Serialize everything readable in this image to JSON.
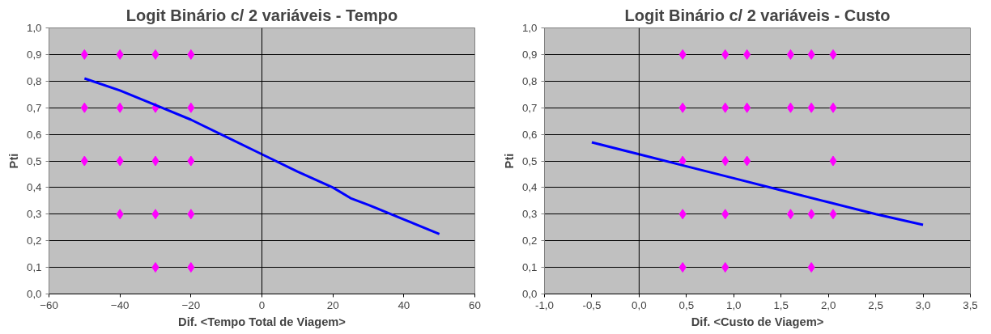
{
  "chart_data": [
    {
      "type": "scatter",
      "title": "Logit Binário c/ 2 variáveis - Tempo",
      "xlabel": "Dif. <Tempo Total de Viagem>",
      "ylabel": "Pti",
      "ref_lines": [
        {
          "axis": "x",
          "value": 0,
          "color": "#000000"
        }
      ],
      "grid": "y",
      "xlim": [
        -60,
        60
      ],
      "xticks": [
        -60,
        -40,
        -20,
        0,
        20,
        40,
        60
      ],
      "ylim": [
        0,
        1
      ],
      "yticks": [
        {
          "value": 0,
          "label": "0,0"
        },
        {
          "value": 0.1,
          "label": "0,1"
        },
        {
          "value": 0.2,
          "label": "0,2"
        },
        {
          "value": 0.3,
          "label": "0,3"
        },
        {
          "value": 0.4,
          "label": "0,4"
        },
        {
          "value": 0.5,
          "label": "0,5"
        },
        {
          "value": 0.6,
          "label": "0,6"
        },
        {
          "value": 0.7,
          "label": "0,7"
        },
        {
          "value": 0.8,
          "label": "0,8"
        },
        {
          "value": 0.9,
          "label": "0,9"
        },
        {
          "value": 1,
          "label": "1,0"
        }
      ],
      "series": [
        {
          "color": "#ff00ff",
          "marker": "diamond",
          "x": [
            -50,
            -50,
            -50,
            -40,
            -40,
            -40,
            -40,
            -30,
            -30,
            -30,
            -30,
            -30,
            -20,
            -20,
            -20,
            -20,
            -20
          ],
          "values": [
            0.9,
            0.7,
            0.5,
            0.9,
            0.7,
            0.5,
            0.3,
            0.9,
            0.7,
            0.5,
            0.3,
            0.1,
            0.9,
            0.7,
            0.5,
            0.3,
            0.1
          ]
        },
        {
          "type": "line",
          "color": "#0000ff",
          "x": [
            -50,
            -40,
            -30,
            -20,
            -10,
            0,
            10,
            20,
            25,
            30,
            40,
            50
          ],
          "values": [
            0.81,
            0.765,
            0.71,
            0.655,
            0.59,
            0.525,
            0.46,
            0.4,
            0.36,
            0.335,
            0.28,
            0.225
          ]
        }
      ]
    },
    {
      "type": "scatter",
      "title": "Logit Binário c/ 2 variáveis - Custo",
      "xlabel": "Dif. <Custo de Viagem>",
      "ylabel": "Pti",
      "ref_lines": [
        {
          "axis": "x",
          "value": 0,
          "color": "#000000"
        }
      ],
      "grid": "y",
      "xlim": [
        -1,
        3.5
      ],
      "xticks": [
        {
          "value": -1,
          "label": "-1,0"
        },
        {
          "value": -0.5,
          "label": "-0,5"
        },
        {
          "value": 0,
          "label": "0,0"
        },
        {
          "value": 0.5,
          "label": "0,5"
        },
        {
          "value": 1,
          "label": "1,0"
        },
        {
          "value": 1.5,
          "label": "1,5"
        },
        {
          "value": 2,
          "label": "2,0"
        },
        {
          "value": 2.5,
          "label": "2,5"
        },
        {
          "value": 3,
          "label": "3,0"
        },
        {
          "value": 3.5,
          "label": "3,5"
        }
      ],
      "ylim": [
        0,
        1
      ],
      "yticks": [
        {
          "value": 0,
          "label": "0,0"
        },
        {
          "value": 0.1,
          "label": "0,1"
        },
        {
          "value": 0.2,
          "label": "0,2"
        },
        {
          "value": 0.3,
          "label": "0,3"
        },
        {
          "value": 0.4,
          "label": "0,4"
        },
        {
          "value": 0.5,
          "label": "0,5"
        },
        {
          "value": 0.6,
          "label": "0,6"
        },
        {
          "value": 0.7,
          "label": "0,7"
        },
        {
          "value": 0.8,
          "label": "0,8"
        },
        {
          "value": 0.9,
          "label": "0,9"
        },
        {
          "value": 1,
          "label": "1,0"
        }
      ],
      "series": [
        {
          "color": "#ff00ff",
          "marker": "diamond",
          "x": [
            0.46,
            0.46,
            0.46,
            0.46,
            0.46,
            0.91,
            0.91,
            0.91,
            0.91,
            0.91,
            1.14,
            1.14,
            1.14,
            1.6,
            1.6,
            1.6,
            1.82,
            1.82,
            1.82,
            1.82,
            2.05,
            2.05,
            2.05,
            2.05
          ],
          "values": [
            0.9,
            0.7,
            0.5,
            0.3,
            0.1,
            0.9,
            0.7,
            0.5,
            0.3,
            0.1,
            0.9,
            0.7,
            0.5,
            0.9,
            0.7,
            0.3,
            0.9,
            0.7,
            0.3,
            0.1,
            0.9,
            0.7,
            0.5,
            0.3
          ]
        },
        {
          "type": "line",
          "color": "#0000ff",
          "x": [
            -0.5,
            0,
            0.5,
            1,
            1.5,
            2,
            2.5,
            3
          ],
          "values": [
            0.57,
            0.525,
            0.48,
            0.435,
            0.39,
            0.345,
            0.3,
            0.26
          ]
        }
      ]
    }
  ]
}
